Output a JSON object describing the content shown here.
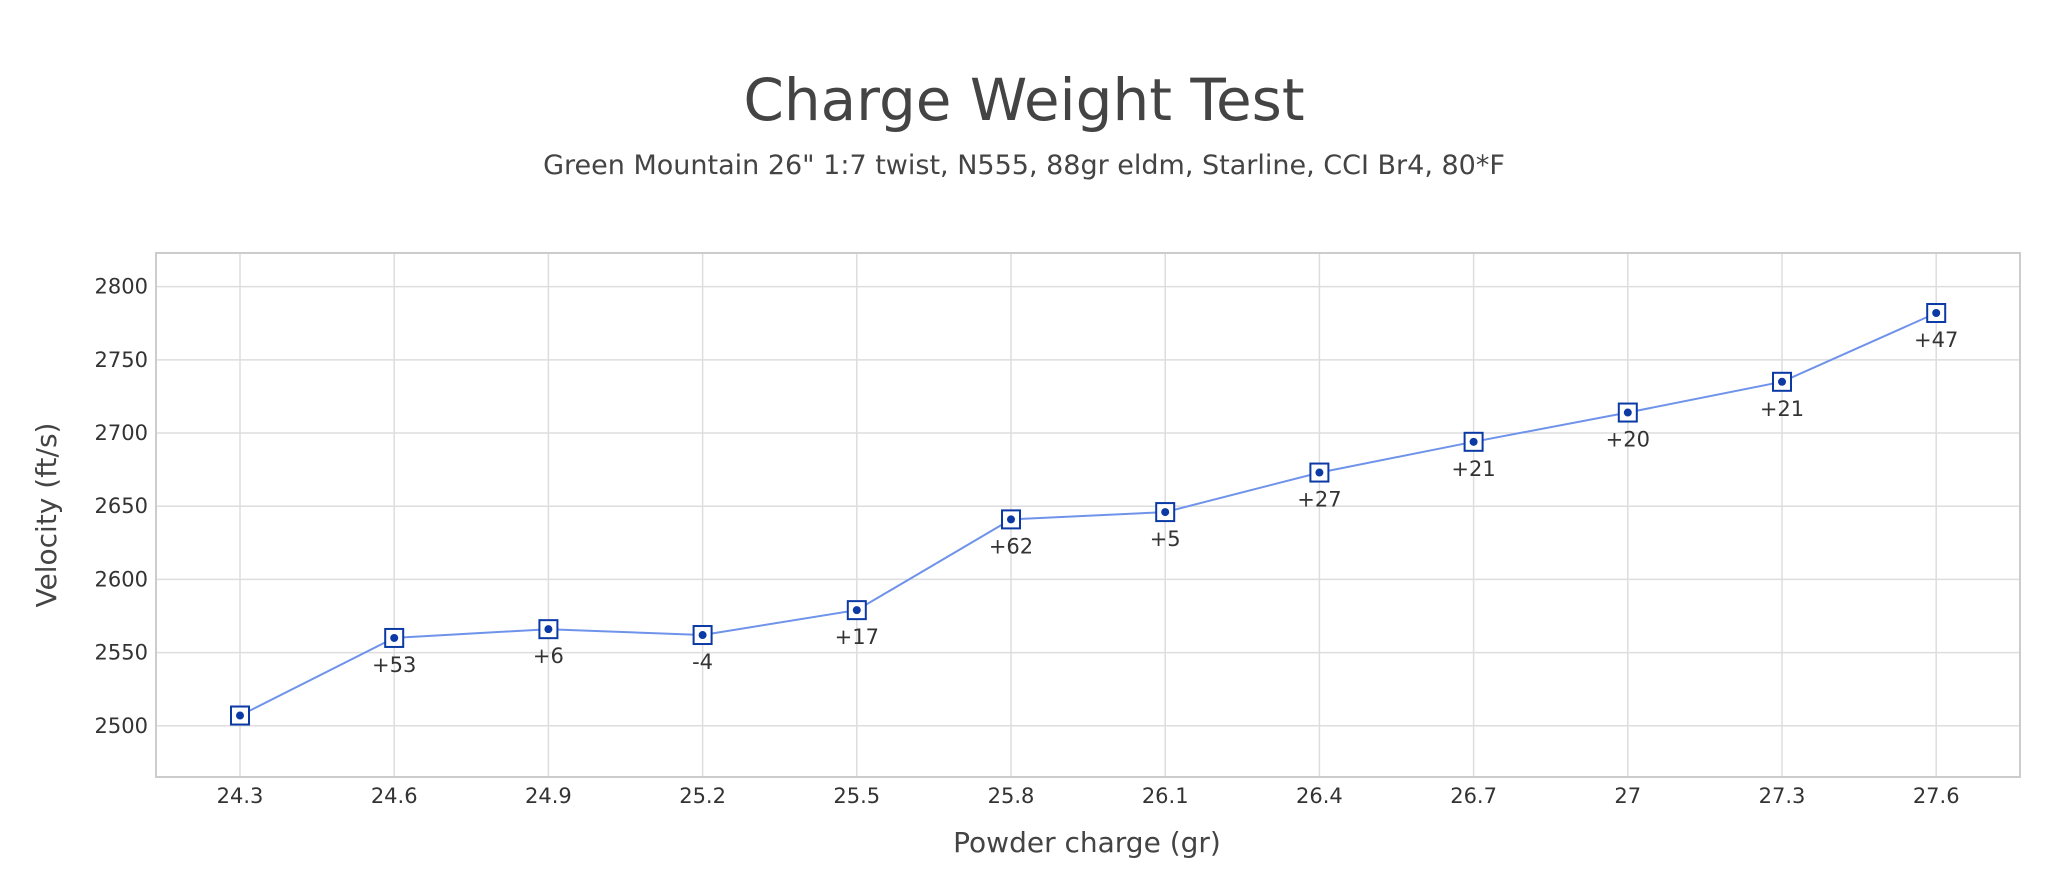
{
  "chart_data": {
    "type": "line",
    "title": "Charge Weight Test",
    "subtitle": "Green Mountain 26\"  1:7 twist, N555, 88gr eldm, Starline, CCI Br4, 80*F",
    "xlabel": "Powder charge (gr)",
    "ylabel": "Velocity (ft/s)",
    "categories": [
      "24.3",
      "24.6",
      "24.9",
      "25.2",
      "25.5",
      "25.8",
      "26.1",
      "26.4",
      "26.7",
      "27",
      "27.3",
      "27.6"
    ],
    "y_ticks": [
      "2500",
      "2550",
      "2600",
      "2650",
      "2700",
      "2750",
      "2800"
    ],
    "ylim": [
      2465,
      2823
    ],
    "grid": true,
    "series": [
      {
        "values": [
          2507,
          2560,
          2566,
          2562,
          2579,
          2641,
          2646,
          2673,
          2694,
          2714,
          2735,
          2782
        ],
        "labels": [
          "",
          "+53",
          "+6",
          "-4",
          "+17",
          "+62",
          "+5",
          "+27",
          "+21",
          "+20",
          "+21",
          "+47"
        ]
      }
    ],
    "colors": {
      "line": "#6f93ea",
      "marker": "#0b3aa5",
      "grid": "#dddddd",
      "text": "#444444"
    }
  }
}
